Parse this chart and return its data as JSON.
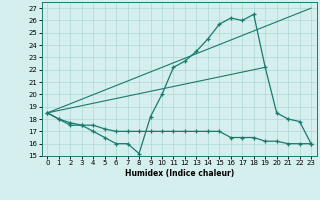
{
  "xlabel": "Humidex (Indice chaleur)",
  "bg_color": "#d4efed",
  "line_color": "#1a7a6e",
  "grid_color": "#b0d8d4",
  "xlim": [
    -0.5,
    23.5
  ],
  "ylim": [
    15,
    27.5
  ],
  "yticks": [
    15,
    16,
    17,
    18,
    19,
    20,
    21,
    22,
    23,
    24,
    25,
    26,
    27
  ],
  "xticks": [
    0,
    1,
    2,
    3,
    4,
    5,
    6,
    7,
    8,
    9,
    10,
    11,
    12,
    13,
    14,
    15,
    16,
    17,
    18,
    19,
    20,
    21,
    22,
    23
  ],
  "line1_x": [
    0,
    1,
    2,
    3,
    4,
    5,
    6,
    7,
    8,
    9,
    10,
    11,
    12,
    13,
    14,
    15,
    16,
    17,
    18,
    19,
    20,
    21,
    22,
    23
  ],
  "line1_y": [
    18.5,
    18.0,
    17.5,
    17.5,
    17.0,
    16.5,
    16.0,
    16.0,
    15.2,
    18.2,
    20.0,
    22.2,
    22.7,
    23.5,
    24.5,
    25.7,
    26.2,
    26.0,
    26.5,
    22.2,
    18.5,
    18.0,
    17.8,
    16.0
  ],
  "line2_x": [
    0,
    1,
    2,
    3,
    4,
    5,
    6,
    7,
    8,
    9,
    10,
    11,
    12,
    13,
    14,
    15,
    16,
    17,
    18,
    19,
    20,
    21,
    22,
    23
  ],
  "line2_y": [
    18.5,
    18.0,
    17.7,
    17.5,
    17.5,
    17.2,
    17.0,
    17.0,
    17.0,
    17.0,
    17.0,
    17.0,
    17.0,
    17.0,
    17.0,
    17.0,
    16.5,
    16.5,
    16.5,
    16.2,
    16.2,
    16.0,
    16.0,
    16.0
  ],
  "line3_x": [
    0,
    23
  ],
  "line3_y": [
    18.5,
    27.0
  ],
  "line4_x": [
    0,
    19
  ],
  "line4_y": [
    18.5,
    22.2
  ]
}
